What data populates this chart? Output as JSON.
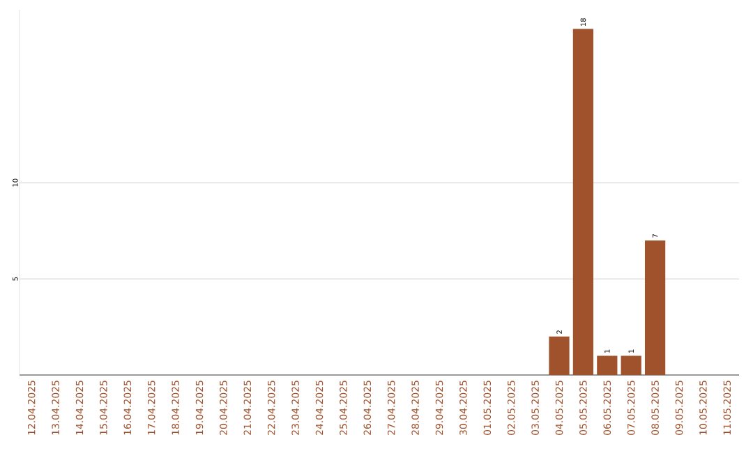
{
  "chart_data": {
    "type": "bar",
    "categories": [
      "12.04.2025",
      "13.04.2025",
      "14.04.2025",
      "15.04.2025",
      "16.04.2025",
      "17.04.2025",
      "18.04.2025",
      "19.04.2025",
      "20.04.2025",
      "21.04.2025",
      "22.04.2025",
      "23.04.2025",
      "24.04.2025",
      "25.04.2025",
      "26.04.2025",
      "27.04.2025",
      "28.04.2025",
      "29.04.2025",
      "30.04.2025",
      "01.05.2025",
      "02.05.2025",
      "03.05.2025",
      "04.05.2025",
      "05.05.2025",
      "06.05.2025",
      "07.05.2025",
      "08.05.2025",
      "09.05.2025",
      "10.05.2025",
      "11.05.2025"
    ],
    "values": [
      0,
      0,
      0,
      0,
      0,
      0,
      0,
      0,
      0,
      0,
      0,
      0,
      0,
      0,
      0,
      0,
      0,
      0,
      0,
      0,
      0,
      0,
      2,
      18,
      1,
      1,
      7,
      0,
      0,
      0
    ],
    "value_labels": [
      null,
      null,
      null,
      null,
      null,
      null,
      null,
      null,
      null,
      null,
      null,
      null,
      null,
      null,
      null,
      null,
      null,
      null,
      null,
      null,
      null,
      null,
      "2",
      "18",
      "1",
      "1",
      "7",
      null,
      null,
      null
    ],
    "color": "#a0522d",
    "ylim": [
      0,
      19
    ],
    "yticks": [
      5,
      10
    ],
    "grid": "y"
  }
}
